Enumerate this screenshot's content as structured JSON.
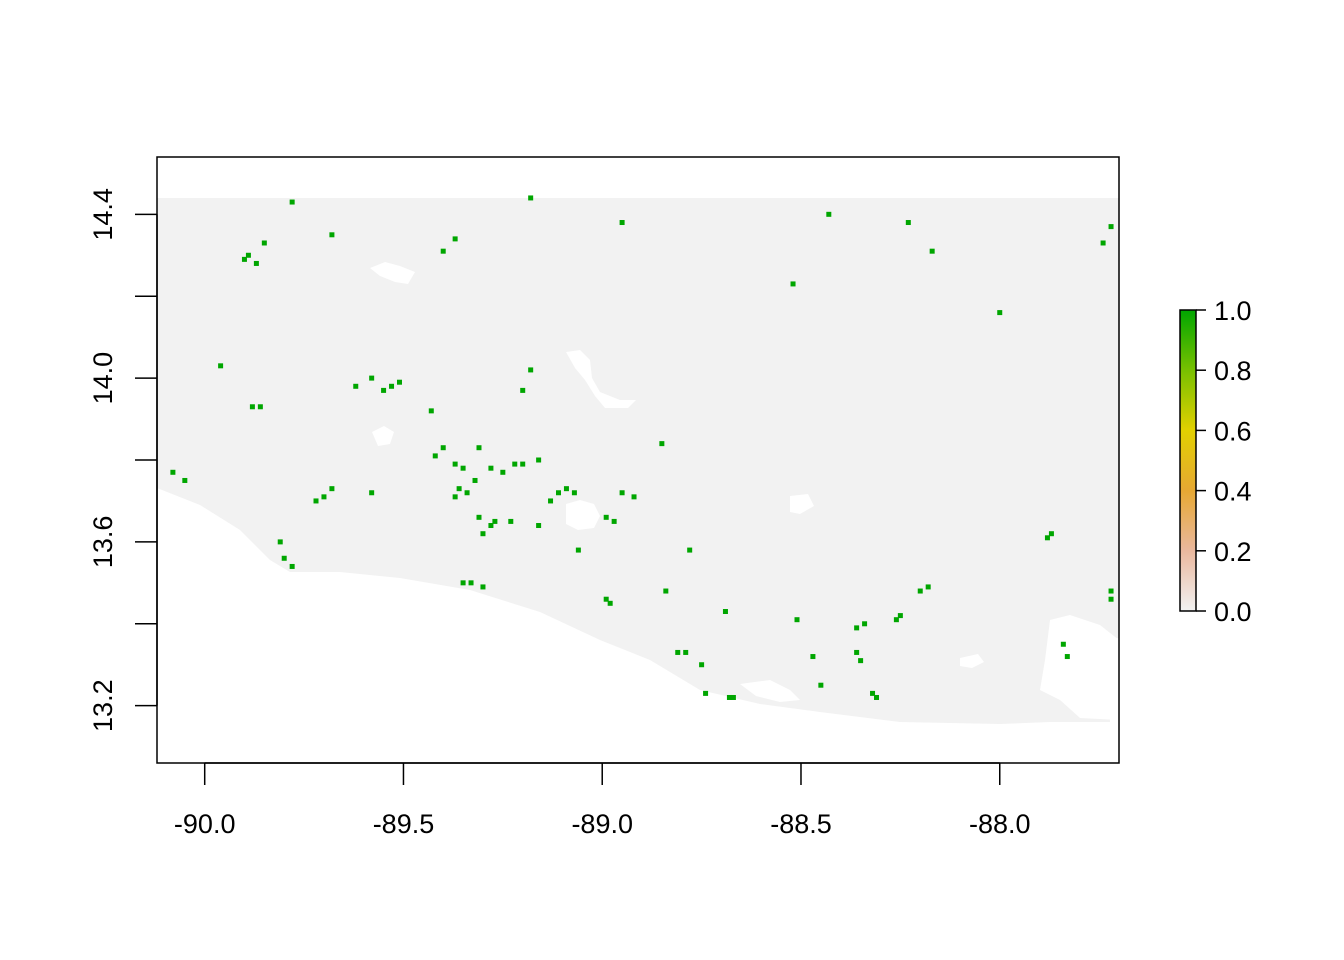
{
  "chart_data": {
    "type": "heatmap",
    "title": "",
    "xlabel": "",
    "ylabel": "",
    "xlim": [
      -90.12,
      -87.7
    ],
    "ylim": [
      13.06,
      14.54
    ],
    "x_ticks": [
      {
        "value": -90.0,
        "label": "-90.0"
      },
      {
        "value": -89.5,
        "label": "-89.5"
      },
      {
        "value": -89.0,
        "label": "-89.0"
      },
      {
        "value": -88.5,
        "label": "-88.5"
      },
      {
        "value": -88.0,
        "label": "-88.0"
      }
    ],
    "y_ticks": [
      {
        "value": 13.2,
        "label": "13.2"
      },
      {
        "value": 13.4,
        "label": ""
      },
      {
        "value": 13.6,
        "label": "13.6"
      },
      {
        "value": 13.8,
        "label": ""
      },
      {
        "value": 14.0,
        "label": "14.0"
      },
      {
        "value": 14.2,
        "label": ""
      },
      {
        "value": 14.4,
        "label": "14.4"
      }
    ],
    "raster": {
      "background_value": 0.0,
      "background_color": "#f2f2f2",
      "cells_value_1": [
        [
          -89.9,
          14.29
        ],
        [
          -89.87,
          14.28
        ],
        [
          -89.89,
          14.3
        ],
        [
          -89.85,
          14.33
        ],
        [
          -89.78,
          14.43
        ],
        [
          -89.37,
          14.34
        ],
        [
          -89.4,
          14.31
        ],
        [
          -89.18,
          14.44
        ],
        [
          -88.95,
          14.38
        ],
        [
          -88.43,
          14.4
        ],
        [
          -88.23,
          14.38
        ],
        [
          -88.17,
          14.31
        ],
        [
          -87.72,
          14.37
        ],
        [
          -87.74,
          14.33
        ],
        [
          -88.0,
          14.16
        ],
        [
          -88.52,
          14.23
        ],
        [
          -89.68,
          14.35
        ],
        [
          -89.96,
          14.03
        ],
        [
          -89.88,
          13.93
        ],
        [
          -89.86,
          13.93
        ],
        [
          -89.62,
          13.98
        ],
        [
          -89.58,
          14.0
        ],
        [
          -89.55,
          13.97
        ],
        [
          -89.53,
          13.98
        ],
        [
          -89.51,
          13.99
        ],
        [
          -89.43,
          13.92
        ],
        [
          -89.18,
          14.02
        ],
        [
          -89.2,
          13.97
        ],
        [
          -89.16,
          13.8
        ],
        [
          -89.2,
          13.79
        ],
        [
          -89.22,
          13.79
        ],
        [
          -89.25,
          13.77
        ],
        [
          -89.28,
          13.78
        ],
        [
          -89.32,
          13.75
        ],
        [
          -89.36,
          13.73
        ],
        [
          -89.37,
          13.71
        ],
        [
          -89.34,
          13.72
        ],
        [
          -89.37,
          13.79
        ],
        [
          -89.35,
          13.78
        ],
        [
          -89.4,
          13.83
        ],
        [
          -89.42,
          13.81
        ],
        [
          -89.31,
          13.83
        ],
        [
          -89.09,
          13.73
        ],
        [
          -89.07,
          13.72
        ],
        [
          -89.11,
          13.72
        ],
        [
          -89.13,
          13.7
        ],
        [
          -89.23,
          13.65
        ],
        [
          -89.27,
          13.65
        ],
        [
          -89.28,
          13.64
        ],
        [
          -89.31,
          13.66
        ],
        [
          -89.3,
          13.62
        ],
        [
          -89.16,
          13.64
        ],
        [
          -89.7,
          13.71
        ],
        [
          -89.72,
          13.7
        ],
        [
          -89.68,
          13.73
        ],
        [
          -89.58,
          13.72
        ],
        [
          -89.81,
          13.6
        ],
        [
          -89.8,
          13.56
        ],
        [
          -89.78,
          13.54
        ],
        [
          -90.05,
          13.75
        ],
        [
          -90.08,
          13.77
        ],
        [
          -88.97,
          13.65
        ],
        [
          -88.99,
          13.66
        ],
        [
          -88.92,
          13.71
        ],
        [
          -88.95,
          13.72
        ],
        [
          -88.85,
          13.84
        ],
        [
          -88.78,
          13.58
        ],
        [
          -88.84,
          13.48
        ],
        [
          -88.69,
          13.43
        ],
        [
          -88.51,
          13.41
        ],
        [
          -88.36,
          13.39
        ],
        [
          -88.34,
          13.4
        ],
        [
          -88.25,
          13.42
        ],
        [
          -88.26,
          13.41
        ],
        [
          -88.18,
          13.49
        ],
        [
          -88.2,
          13.48
        ],
        [
          -87.88,
          13.61
        ],
        [
          -87.87,
          13.62
        ],
        [
          -87.72,
          13.46
        ],
        [
          -87.72,
          13.48
        ],
        [
          -87.83,
          13.32
        ],
        [
          -87.84,
          13.35
        ],
        [
          -88.35,
          13.31
        ],
        [
          -88.36,
          13.33
        ],
        [
          -88.31,
          13.22
        ],
        [
          -88.32,
          13.23
        ],
        [
          -88.68,
          13.22
        ],
        [
          -88.67,
          13.22
        ],
        [
          -88.74,
          13.23
        ],
        [
          -88.75,
          13.3
        ],
        [
          -88.79,
          13.33
        ],
        [
          -88.81,
          13.33
        ],
        [
          -88.98,
          13.45
        ],
        [
          -88.99,
          13.46
        ],
        [
          -89.33,
          13.5
        ],
        [
          -89.3,
          13.49
        ],
        [
          -89.35,
          13.5
        ],
        [
          -89.06,
          13.58
        ],
        [
          -88.47,
          13.32
        ],
        [
          -88.45,
          13.25
        ]
      ]
    },
    "legend": {
      "placement": "right",
      "type": "colorbar",
      "range": [
        0.0,
        1.0
      ],
      "ticks": [
        {
          "value": 0.0,
          "label": "0.0"
        },
        {
          "value": 0.2,
          "label": "0.2"
        },
        {
          "value": 0.4,
          "label": "0.4"
        },
        {
          "value": 0.6,
          "label": "0.6"
        },
        {
          "value": 0.8,
          "label": "0.8"
        },
        {
          "value": 1.0,
          "label": "1.0"
        }
      ],
      "color_stops": [
        {
          "value": 0.0,
          "color": "#f2f2f2"
        },
        {
          "value": 0.2,
          "color": "#eab89e"
        },
        {
          "value": 0.4,
          "color": "#e6a833"
        },
        {
          "value": 0.6,
          "color": "#e2d000"
        },
        {
          "value": 0.8,
          "color": "#78c000"
        },
        {
          "value": 1.0,
          "color": "#00a600"
        }
      ]
    }
  }
}
